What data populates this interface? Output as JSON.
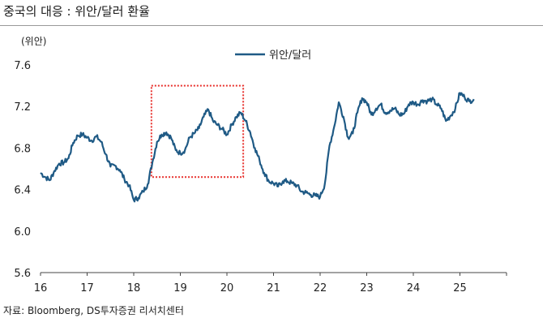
{
  "title": "중국의 대응 : 위안/달러 환율",
  "source": "자료: Bloomberg, DS투자증권 리서치센터",
  "chart_data": {
    "type": "line",
    "unit_label": "(위안)",
    "x_ticks": [
      "16",
      "17",
      "18",
      "19",
      "20",
      "21",
      "22",
      "23",
      "24",
      "25"
    ],
    "x_range": [
      2016.0,
      2026.0
    ],
    "ylim": [
      5.6,
      7.6
    ],
    "y_ticks": [
      "5.6",
      "6.0",
      "6.4",
      "6.8",
      "7.2",
      "7.6"
    ],
    "grid": false,
    "legend_position": "top",
    "series": [
      {
        "name": "위안/달러",
        "color": "#1f5a85",
        "x": [
          2016.0,
          2016.1,
          2016.2,
          2016.3,
          2016.4,
          2016.5,
          2016.6,
          2016.7,
          2016.8,
          2016.9,
          2017.0,
          2017.1,
          2017.2,
          2017.3,
          2017.4,
          2017.5,
          2017.6,
          2017.7,
          2017.8,
          2017.9,
          2018.0,
          2018.1,
          2018.2,
          2018.3,
          2018.4,
          2018.5,
          2018.6,
          2018.7,
          2018.8,
          2018.9,
          2019.0,
          2019.1,
          2019.2,
          2019.3,
          2019.4,
          2019.5,
          2019.6,
          2019.7,
          2019.8,
          2019.9,
          2020.0,
          2020.1,
          2020.2,
          2020.3,
          2020.4,
          2020.5,
          2020.6,
          2020.7,
          2020.8,
          2020.9,
          2021.0,
          2021.1,
          2021.2,
          2021.3,
          2021.4,
          2021.5,
          2021.6,
          2021.7,
          2021.8,
          2021.9,
          2022.0,
          2022.1,
          2022.2,
          2022.3,
          2022.4,
          2022.5,
          2022.6,
          2022.7,
          2022.8,
          2022.9,
          2023.0,
          2023.1,
          2023.2,
          2023.3,
          2023.4,
          2023.5,
          2023.6,
          2023.7,
          2023.8,
          2023.9,
          2024.0,
          2024.1,
          2024.2,
          2024.3,
          2024.4,
          2024.5,
          2024.6,
          2024.7,
          2024.8,
          2024.9,
          2025.0,
          2025.1,
          2025.2,
          2025.3
        ],
        "values": [
          6.56,
          6.52,
          6.49,
          6.58,
          6.65,
          6.66,
          6.7,
          6.85,
          6.92,
          6.93,
          6.9,
          6.87,
          6.91,
          6.86,
          6.74,
          6.62,
          6.63,
          6.59,
          6.5,
          6.44,
          6.3,
          6.32,
          6.38,
          6.45,
          6.66,
          6.86,
          6.93,
          6.95,
          6.9,
          6.78,
          6.75,
          6.78,
          6.9,
          6.94,
          6.99,
          7.1,
          7.17,
          7.06,
          7.02,
          6.98,
          6.93,
          7.02,
          7.1,
          7.14,
          7.06,
          6.95,
          6.8,
          6.68,
          6.56,
          6.48,
          6.46,
          6.43,
          6.48,
          6.48,
          6.46,
          6.44,
          6.38,
          6.37,
          6.35,
          6.34,
          6.33,
          6.45,
          6.82,
          7.0,
          7.24,
          7.1,
          6.9,
          6.94,
          7.14,
          7.28,
          7.24,
          7.12,
          7.18,
          7.22,
          7.14,
          7.16,
          7.18,
          7.12,
          7.13,
          7.22,
          7.24,
          7.22,
          7.26,
          7.25,
          7.27,
          7.22,
          7.18,
          7.06,
          7.11,
          7.18,
          7.33,
          7.29,
          7.25,
          7.27
        ]
      }
    ],
    "highlight_box": {
      "x_range": [
        2018.38,
        2020.35
      ],
      "y_range": [
        6.52,
        7.4
      ],
      "color": "#e8312d",
      "style": "dotted"
    }
  }
}
